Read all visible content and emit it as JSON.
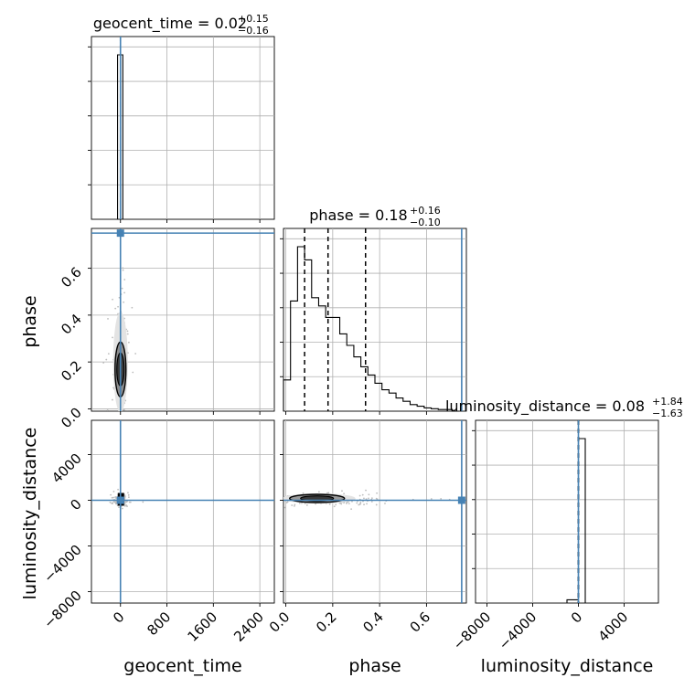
{
  "chart_data": {
    "type": "corner",
    "parameters": [
      "geocent_time",
      "phase",
      "luminosity_distance"
    ],
    "titles": [
      {
        "param": "geocent_time",
        "text": "geocent_time = 0.02",
        "upper": "+0.15",
        "lower": "−0.16",
        "median": 0.02
      },
      {
        "param": "phase",
        "text": "phase = 0.18",
        "upper": "+0.16",
        "lower": "−0.10",
        "median": 0.18
      },
      {
        "param": "luminosity_distance",
        "text": "luminosity_distance = 0.08",
        "upper": "+1.84",
        "lower": "−1.63",
        "median": 0.08
      }
    ],
    "axes": {
      "geocent_time": {
        "label": "geocent_time",
        "range": [
          -500,
          2650
        ],
        "ticks": [
          0,
          800,
          1600,
          2400
        ],
        "tick_labels": [
          "0",
          "800",
          "1600",
          "2400"
        ]
      },
      "phase": {
        "label": "phase",
        "range": [
          -0.01,
          0.77
        ],
        "ticks": [
          0.0,
          0.2,
          0.4,
          0.6
        ],
        "tick_labels": [
          "0.0",
          "0.2",
          "0.4",
          "0.6"
        ]
      },
      "luminosity_distance": {
        "label": "luminosity_distance",
        "range": [
          -9000,
          7000
        ],
        "ticks": [
          -8000,
          -4000,
          0,
          4000
        ],
        "tick_labels": [
          "−8000",
          "−4000",
          "0",
          "4000"
        ]
      }
    },
    "truths": {
      "geocent_time": 0,
      "phase": 0.75,
      "luminosity_distance": 0
    },
    "quantiles": {
      "geocent_time": [
        -0.14,
        0.02,
        0.17
      ],
      "phase": [
        0.08,
        0.18,
        0.34
      ],
      "luminosity_distance": [
        -1.55,
        0.08,
        1.92
      ]
    },
    "histograms": {
      "geocent_time": {
        "bins": [
          [
            -50,
            40
          ]
        ],
        "counts": [
          1.0
        ]
      },
      "phase": {
        "edges": [
          -0.01,
          0.02,
          0.05,
          0.08,
          0.11,
          0.14,
          0.17,
          0.2,
          0.23,
          0.26,
          0.29,
          0.32,
          0.35,
          0.38,
          0.41,
          0.44,
          0.47,
          0.5,
          0.53,
          0.56,
          0.59,
          0.62,
          0.65,
          0.68,
          0.71,
          0.74
        ],
        "counts": [
          0.19,
          0.67,
          1.0,
          0.92,
          0.69,
          0.64,
          0.57,
          0.57,
          0.47,
          0.4,
          0.33,
          0.27,
          0.22,
          0.17,
          0.13,
          0.11,
          0.08,
          0.06,
          0.04,
          0.03,
          0.02,
          0.015,
          0.01,
          0.01,
          0.0
        ]
      },
      "luminosity_distance": {
        "bins": [
          [
            -1000,
            0
          ],
          [
            0,
            600
          ]
        ],
        "counts": [
          0.02,
          1.0
        ]
      }
    },
    "grid": true
  }
}
